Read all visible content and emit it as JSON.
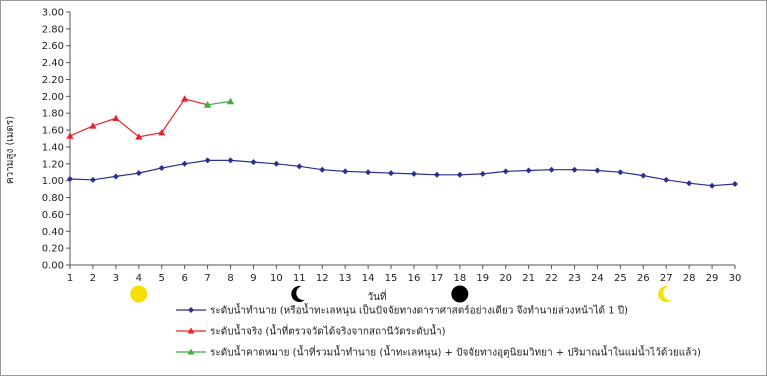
{
  "chart_data": {
    "type": "line",
    "title": "",
    "xlabel": "วันที่",
    "ylabel": "ความสูง (เมตร)",
    "x": [
      1,
      2,
      3,
      4,
      5,
      6,
      7,
      8,
      9,
      10,
      11,
      12,
      13,
      14,
      15,
      16,
      17,
      18,
      19,
      20,
      21,
      22,
      23,
      24,
      25,
      26,
      27,
      28,
      29,
      30
    ],
    "x_tick_labels": [
      "1",
      "2",
      "3",
      "4",
      "5",
      "6",
      "7",
      "8",
      "9",
      "10",
      "11",
      "12",
      "13",
      "14",
      "15",
      "16",
      "17",
      "18",
      "19",
      "20",
      "21",
      "22",
      "23",
      "24",
      "25",
      "26",
      "27",
      "28",
      "29",
      "30"
    ],
    "y_tick_labels": [
      "0.00",
      "0.20",
      "0.40",
      "0.60",
      "0.80",
      "1.00",
      "1.20",
      "1.40",
      "1.60",
      "1.80",
      "2.00",
      "2.20",
      "2.40",
      "2.60",
      "2.80",
      "3.00"
    ],
    "ylim": [
      0,
      3
    ],
    "xlim": [
      1,
      30
    ],
    "grid": false,
    "legend_position": "bottom",
    "series": [
      {
        "name": "ระดับน้ำทำนาย (หรือน้ำทะเลหนุน เป็นปัจจัยทางดาราศาสตร์อย่างเดียว จึงทำนายล่วงหน้าได้ 1 ปี)",
        "color": "#2b2f8f",
        "marker": "diamond",
        "x": [
          1,
          2,
          3,
          4,
          5,
          6,
          7,
          8,
          9,
          10,
          11,
          12,
          13,
          14,
          15,
          16,
          17,
          18,
          19,
          20,
          21,
          22,
          23,
          24,
          25,
          26,
          27,
          28,
          29,
          30
        ],
        "values": [
          1.02,
          1.01,
          1.05,
          1.09,
          1.15,
          1.2,
          1.24,
          1.24,
          1.22,
          1.2,
          1.17,
          1.13,
          1.11,
          1.1,
          1.09,
          1.08,
          1.07,
          1.07,
          1.08,
          1.11,
          1.12,
          1.13,
          1.13,
          1.12,
          1.1,
          1.06,
          1.01,
          0.97,
          0.94,
          0.96
        ]
      },
      {
        "name": "ระดับน้ำจริง (น้ำที่ตรวจวัดได้จริงจากสถานีวัดระดับน้ำ)",
        "color": "#e8232a",
        "marker": "triangle",
        "x": [
          1,
          2,
          3,
          4,
          5,
          6,
          7
        ],
        "values": [
          1.53,
          1.65,
          1.74,
          1.52,
          1.57,
          1.97,
          1.9
        ]
      },
      {
        "name": "ระดับน้ำคาดหมาย (น้ำที่รวมน้ำทำนาย (น้ำทะเลหนุน) + ปัจจัยทางอุตุนิยมวิทยา + ปริมาณน้ำในแม่น้ำไว้ด้วยแล้ว)",
        "color": "#3fae3f",
        "marker": "triangle",
        "x": [
          7,
          8
        ],
        "values": [
          1.9,
          1.94
        ]
      }
    ],
    "annotations": [
      {
        "icon": "full-moon-icon",
        "x": 4,
        "color": "#f7e000"
      },
      {
        "icon": "crescent-moon-icon",
        "x": 11,
        "color": "#000000"
      },
      {
        "icon": "new-moon-icon",
        "x": 18,
        "color": "#000000"
      },
      {
        "icon": "crescent-moon-icon",
        "x": 27,
        "color": "#f7e000"
      }
    ]
  }
}
